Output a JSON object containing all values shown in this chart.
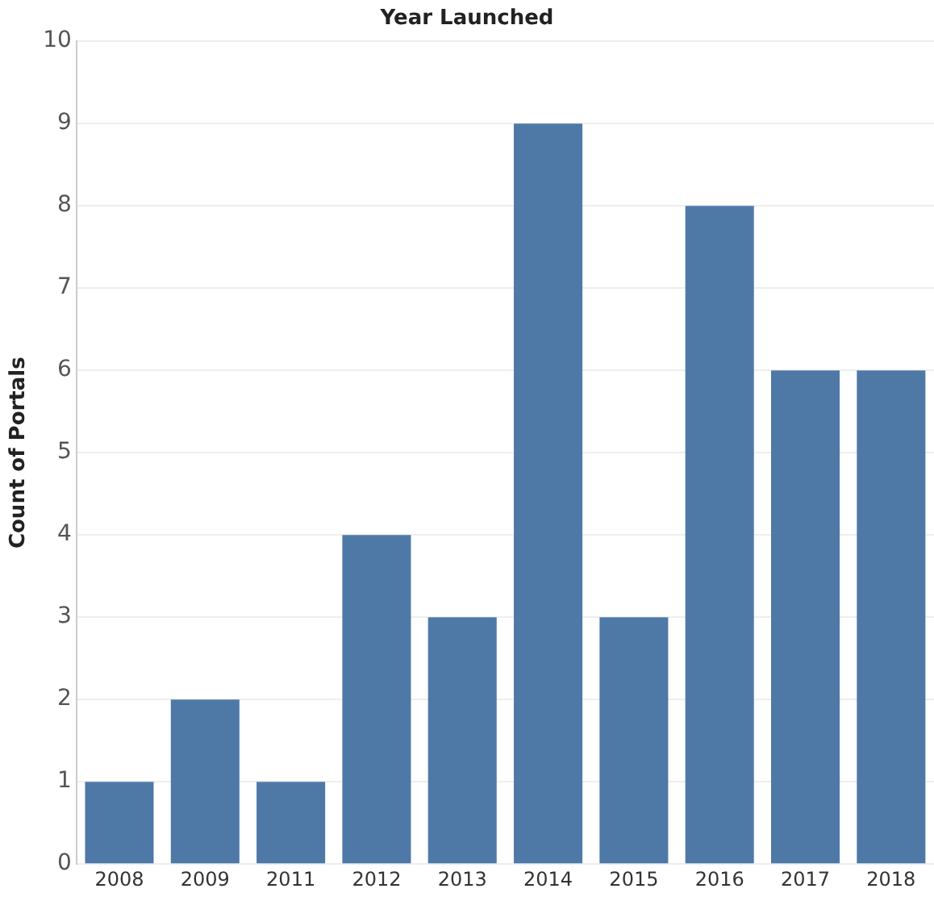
{
  "chart_data": {
    "type": "bar",
    "title": "Year Launched",
    "ylabel": "Count of Portals",
    "categories": [
      "2008",
      "2009",
      "2011",
      "2012",
      "2013",
      "2014",
      "2015",
      "2016",
      "2017",
      "2018"
    ],
    "values": [
      1,
      2,
      1,
      4,
      3,
      9,
      3,
      8,
      6,
      6
    ],
    "color": "#4e79a7",
    "ylim": [
      0,
      10
    ],
    "yticks": [
      0,
      1,
      2,
      3,
      4,
      5,
      6,
      7,
      8,
      9,
      10
    ],
    "grid": "y"
  }
}
